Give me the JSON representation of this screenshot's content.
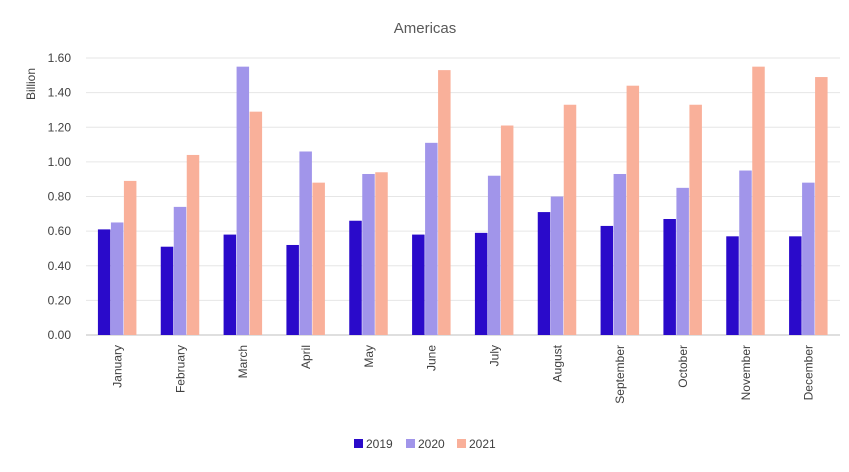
{
  "chart_data": {
    "type": "bar",
    "title": "Americas",
    "xlabel": "",
    "ylabel": "Billion",
    "ylim": [
      0,
      1.6
    ],
    "yticks": [
      "0.00",
      "0.20",
      "0.40",
      "0.60",
      "0.80",
      "1.00",
      "1.20",
      "1.40",
      "1.60"
    ],
    "grid": true,
    "legend_position": "bottom",
    "categories": [
      "January",
      "February",
      "March",
      "April",
      "May",
      "June",
      "July",
      "August",
      "September",
      "October",
      "November",
      "December"
    ],
    "series": [
      {
        "name": "2019",
        "color": "#2A0ACA",
        "values": [
          0.61,
          0.51,
          0.58,
          0.52,
          0.66,
          0.58,
          0.59,
          0.71,
          0.63,
          0.67,
          0.57,
          0.57
        ]
      },
      {
        "name": "2020",
        "color": "#A195EA",
        "values": [
          0.65,
          0.74,
          1.55,
          1.06,
          0.93,
          1.11,
          0.92,
          0.8,
          0.93,
          0.85,
          0.95,
          0.88
        ]
      },
      {
        "name": "2021",
        "color": "#F9B09A",
        "values": [
          0.89,
          1.04,
          1.29,
          0.88,
          0.94,
          1.53,
          1.21,
          1.33,
          1.44,
          1.33,
          1.55,
          1.49
        ]
      }
    ]
  }
}
